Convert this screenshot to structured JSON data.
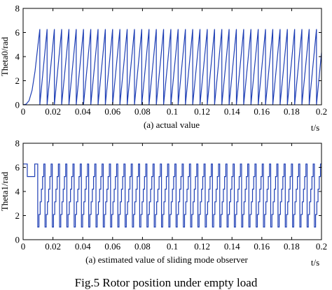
{
  "figure": {
    "caption": "Fig.5  Rotor position under empty load"
  },
  "chart_data": [
    {
      "type": "line",
      "title": "",
      "subcaption": "(a) actual value",
      "xlabel": "t/s",
      "ylabel": "Theta0/rad",
      "xlim": [
        0,
        0.2
      ],
      "ylim": [
        0,
        8
      ],
      "x_ticks": [
        0,
        0.02,
        0.04,
        0.06,
        0.08,
        0.1,
        0.12,
        0.14,
        0.16,
        0.18,
        0.2
      ],
      "x_tick_labels": [
        "0",
        "0.02",
        "0.04",
        "0.06",
        "0.08",
        "0.1",
        "0.12",
        "0.14",
        "0.16",
        "0.18",
        "0.2"
      ],
      "y_ticks": [
        0,
        2,
        4,
        6,
        8
      ],
      "y_tick_labels": [
        "0",
        "2",
        "4",
        "6",
        "8"
      ],
      "grid": false,
      "color": "#1f3fb5",
      "series": [
        {
          "kind": "sawtooth",
          "start_curve": {
            "x": [
              0,
              0.002,
              0.004,
              0.006,
              0.008,
              0.01,
              0.0112
            ],
            "y": [
              0,
              0.05,
              0.35,
              1.2,
              2.8,
              5.0,
              6.28
            ]
          },
          "first_wrap_x": 0.0112,
          "period": 0.00488,
          "peak": 6.28,
          "end_x": 0.2
        }
      ]
    },
    {
      "type": "line",
      "title": "",
      "subcaption": "(a) estimated value of sliding mode observer",
      "xlabel": "t/s",
      "ylabel": "Theta1/rad",
      "xlim": [
        0,
        0.2
      ],
      "ylim": [
        0,
        8
      ],
      "x_ticks": [
        0,
        0.02,
        0.04,
        0.06,
        0.08,
        0.1,
        0.12,
        0.14,
        0.16,
        0.18,
        0.2
      ],
      "x_tick_labels": [
        "0",
        "0.02",
        "0.04",
        "0.06",
        "0.08",
        "0.1",
        "0.12",
        "0.14",
        "0.16",
        "0.18",
        "0.2"
      ],
      "y_ticks": [
        0,
        2,
        4,
        6,
        8
      ],
      "y_tick_labels": [
        "0",
        "2",
        "4",
        "6",
        "8"
      ],
      "grid": false,
      "color": "#1f3fb5",
      "series": [
        {
          "kind": "staircase",
          "initial": {
            "x": [
              0,
              0.0028,
              0.0028,
              0.0078,
              0.0078,
              0.0098
            ],
            "y": [
              6.28,
              6.28,
              5.24,
              5.24,
              6.28,
              6.28
            ]
          },
          "first_drop_x": 0.0098,
          "period": 0.00488,
          "levels": [
            1.05,
            2.09,
            3.14,
            4.19,
            5.24,
            6.28
          ],
          "end_x": 0.2
        }
      ]
    }
  ]
}
